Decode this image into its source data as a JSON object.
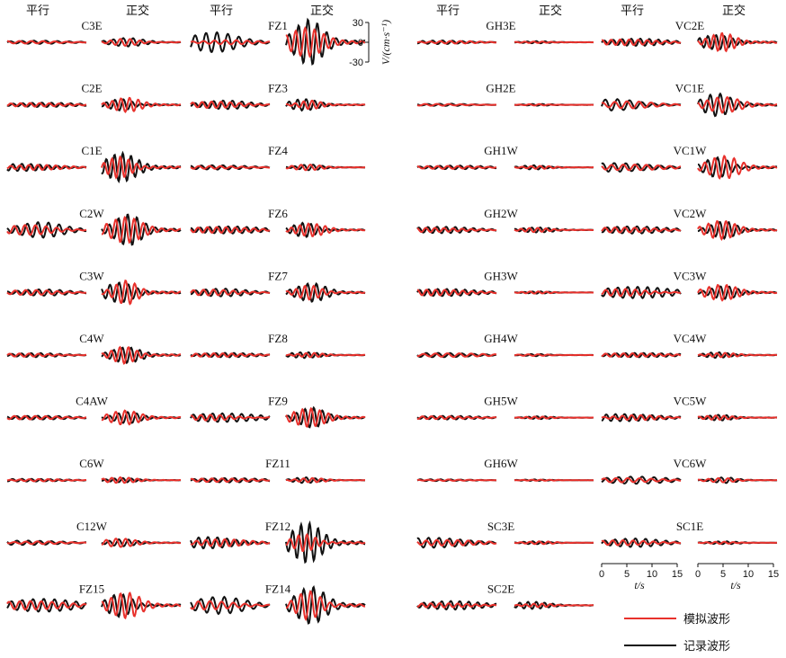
{
  "chart_data": {
    "type": "line",
    "headers": {
      "parallel": "平行",
      "normal": "正交"
    },
    "y_axis": {
      "label": "V/(cm·s⁻¹)",
      "ticks": [
        "30",
        "0",
        "-30"
      ],
      "ylim": [
        -30,
        30
      ]
    },
    "x_axis": {
      "label": "t/s",
      "ticks": [
        "0",
        "5",
        "10",
        "15"
      ],
      "xlim": [
        0,
        15
      ]
    },
    "legend": {
      "placement": "bottom-right",
      "entries": [
        {
          "label": "模拟波形",
          "color": "#e8312c"
        },
        {
          "label": "记录波形",
          "color": "#111111"
        }
      ]
    },
    "series_colors": {
      "simulated": "#e8312c",
      "recorded": "#111111"
    },
    "columns": [
      {
        "stations": [
          {
            "name": "C3E",
            "par": [
              2.2,
              1.8
            ],
            "nor": [
              6.0,
              5.0
            ]
          },
          {
            "name": "C2E",
            "par": [
              3.0,
              2.5
            ],
            "nor": [
              8.0,
              10.0
            ]
          },
          {
            "name": "C1E",
            "par": [
              5.0,
              3.5
            ],
            "nor": [
              20.0,
              15.0
            ]
          },
          {
            "name": "C2W",
            "par": [
              11.0,
              7.0
            ],
            "nor": [
              22.0,
              18.0
            ]
          },
          {
            "name": "C3W",
            "par": [
              4.5,
              3.5
            ],
            "nor": [
              14.0,
              17.0
            ]
          },
          {
            "name": "C4W",
            "par": [
              2.8,
              2.2
            ],
            "nor": [
              11.0,
              12.0
            ]
          },
          {
            "name": "C4AW",
            "par": [
              2.6,
              2.4
            ],
            "nor": [
              8.0,
              10.0
            ]
          },
          {
            "name": "C6W",
            "par": [
              1.8,
              1.6
            ],
            "nor": [
              3.0,
              4.0
            ]
          },
          {
            "name": "C12W",
            "par": [
              3.0,
              2.0
            ],
            "nor": [
              5.0,
              6.0
            ]
          },
          {
            "name": "FZ15",
            "par": [
              9.0,
              6.0
            ],
            "nor": [
              16.0,
              18.0
            ]
          }
        ]
      },
      {
        "stations": [
          {
            "name": "FZ1",
            "par": [
              14.0,
              3.0
            ],
            "nor": [
              32.0,
              20.0
            ]
          },
          {
            "name": "FZ3",
            "par": [
              6.0,
              4.5
            ],
            "nor": [
              8.0,
              6.0
            ]
          },
          {
            "name": "FZ4",
            "par": [
              3.0,
              2.0
            ],
            "nor": [
              4.0,
              4.0
            ]
          },
          {
            "name": "FZ6",
            "par": [
              5.0,
              4.0
            ],
            "nor": [
              10.0,
              9.0
            ]
          },
          {
            "name": "FZ7",
            "par": [
              5.5,
              4.0
            ],
            "nor": [
              13.0,
              10.0
            ]
          },
          {
            "name": "FZ8",
            "par": [
              3.0,
              2.5
            ],
            "nor": [
              4.0,
              3.0
            ]
          },
          {
            "name": "FZ9",
            "par": [
              6.0,
              4.0
            ],
            "nor": [
              14.0,
              13.0
            ]
          },
          {
            "name": "FZ11",
            "par": [
              3.0,
              2.5
            ],
            "nor": [
              4.0,
              3.0
            ]
          },
          {
            "name": "FZ12",
            "par": [
              8.0,
              5.0
            ],
            "nor": [
              28.0,
              12.0
            ]
          },
          {
            "name": "FZ14",
            "par": [
              12.0,
              6.0
            ],
            "nor": [
              26.0,
              20.0
            ]
          }
        ]
      },
      {
        "stations": [
          {
            "name": "GH3E",
            "par": [
              2.5,
              1.8
            ],
            "nor": [
              1.5,
              1.0
            ]
          },
          {
            "name": "GH2E",
            "par": [
              1.5,
              1.3
            ],
            "nor": [
              1.2,
              1.0
            ]
          },
          {
            "name": "GH1W",
            "par": [
              2.5,
              2.0
            ],
            "nor": [
              3.0,
              2.0
            ]
          },
          {
            "name": "GH2W",
            "par": [
              4.5,
              3.0
            ],
            "nor": [
              3.5,
              3.0
            ]
          },
          {
            "name": "GH3W",
            "par": [
              5.0,
              4.0
            ],
            "nor": [
              1.5,
              1.5
            ]
          },
          {
            "name": "GH4W",
            "par": [
              3.0,
              2.5
            ],
            "nor": [
              1.5,
              1.2
            ]
          },
          {
            "name": "GH5W",
            "par": [
              2.5,
              2.0
            ],
            "nor": [
              2.0,
              1.5
            ]
          },
          {
            "name": "GH6W",
            "par": [
              1.2,
              1.0
            ],
            "nor": [
              1.0,
              0.8
            ]
          },
          {
            "name": "SC3E",
            "par": [
              7.0,
              4.0
            ],
            "nor": [
              2.0,
              2.0
            ]
          },
          {
            "name": "SC2E",
            "par": [
              6.0,
              3.0
            ],
            "nor": [
              5.0,
              2.5
            ]
          }
        ]
      },
      {
        "stations": [
          {
            "name": "VC2E",
            "par": [
              5.0,
              4.0
            ],
            "nor": [
              10.0,
              13.0
            ]
          },
          {
            "name": "VC1E",
            "par": [
              8.0,
              5.0
            ],
            "nor": [
              16.0,
              11.0
            ]
          },
          {
            "name": "VC1W",
            "par": [
              6.0,
              4.0
            ],
            "nor": [
              14.0,
              16.0
            ]
          },
          {
            "name": "VC2W",
            "par": [
              5.0,
              3.5
            ],
            "nor": [
              12.0,
              13.0
            ]
          },
          {
            "name": "VC3W",
            "par": [
              8.0,
              5.0
            ],
            "nor": [
              9.0,
              11.0
            ]
          },
          {
            "name": "VC4W",
            "par": [
              3.0,
              2.5
            ],
            "nor": [
              4.0,
              3.0
            ]
          },
          {
            "name": "VC5W",
            "par": [
              5.0,
              3.5
            ],
            "nor": [
              4.0,
              3.0
            ]
          },
          {
            "name": "VC6W",
            "par": [
              5.0,
              3.0
            ],
            "nor": [
              4.0,
              3.0
            ]
          },
          {
            "name": "SC1E",
            "par": [
              6.0,
              3.5
            ],
            "nor": [
              2.0,
              1.5
            ]
          }
        ]
      }
    ]
  }
}
